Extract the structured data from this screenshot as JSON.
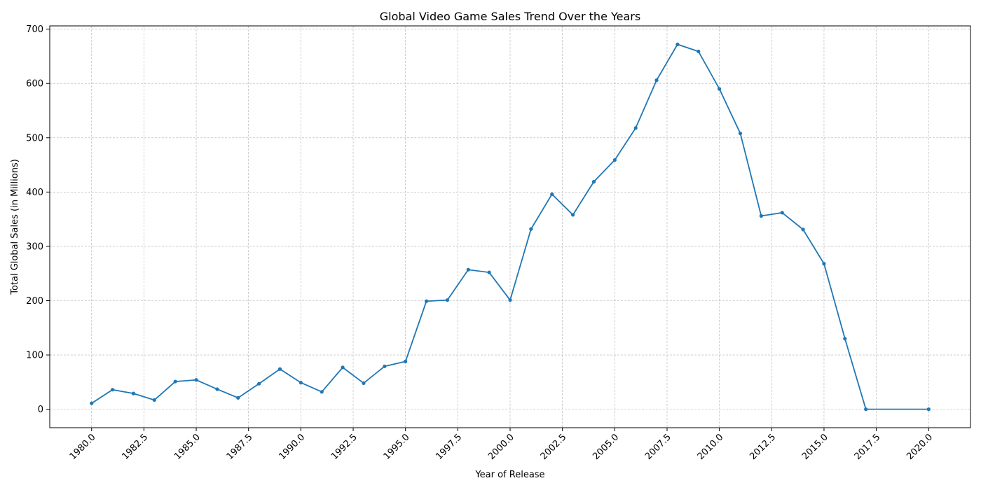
{
  "chart_data": {
    "type": "line",
    "title": "Global Video Game Sales Trend Over the Years",
    "xlabel": "Year of Release",
    "ylabel": "Total Global Sales (in Millions)",
    "xlim": [
      1978.0,
      2022.0
    ],
    "ylim": [
      -34,
      706
    ],
    "xticks": [
      1980.0,
      1982.5,
      1985.0,
      1987.5,
      1990.0,
      1992.5,
      1995.0,
      1997.5,
      2000.0,
      2002.5,
      2005.0,
      2007.5,
      2010.0,
      2012.5,
      2015.0,
      2017.5,
      2020.0
    ],
    "xtick_labels": [
      "1980.0",
      "1982.5",
      "1985.0",
      "1987.5",
      "1990.0",
      "1992.5",
      "1995.0",
      "1997.5",
      "2000.0",
      "2002.5",
      "2005.0",
      "2007.5",
      "2010.0",
      "2012.5",
      "2015.0",
      "2017.5",
      "2020.0"
    ],
    "yticks": [
      0,
      100,
      200,
      300,
      400,
      500,
      600,
      700
    ],
    "ytick_labels": [
      "0",
      "100",
      "200",
      "300",
      "400",
      "500",
      "600",
      "700"
    ],
    "grid": true,
    "series_color": "#1f77b4",
    "x": [
      1980,
      1981,
      1982,
      1983,
      1984,
      1985,
      1986,
      1987,
      1988,
      1989,
      1990,
      1991,
      1992,
      1993,
      1994,
      1995,
      1996,
      1997,
      1998,
      1999,
      2000,
      2001,
      2002,
      2003,
      2004,
      2005,
      2006,
      2007,
      2008,
      2009,
      2010,
      2011,
      2012,
      2013,
      2014,
      2015,
      2016,
      2017,
      2020
    ],
    "y": [
      11,
      36,
      29,
      17,
      51,
      54,
      37,
      21,
      47,
      74,
      49,
      32,
      77,
      48,
      79,
      88,
      199,
      201,
      257,
      252,
      201,
      332,
      396,
      358,
      419,
      459,
      518,
      606,
      672,
      659,
      590,
      508,
      356,
      362,
      331,
      268,
      130,
      0,
      0
    ]
  }
}
